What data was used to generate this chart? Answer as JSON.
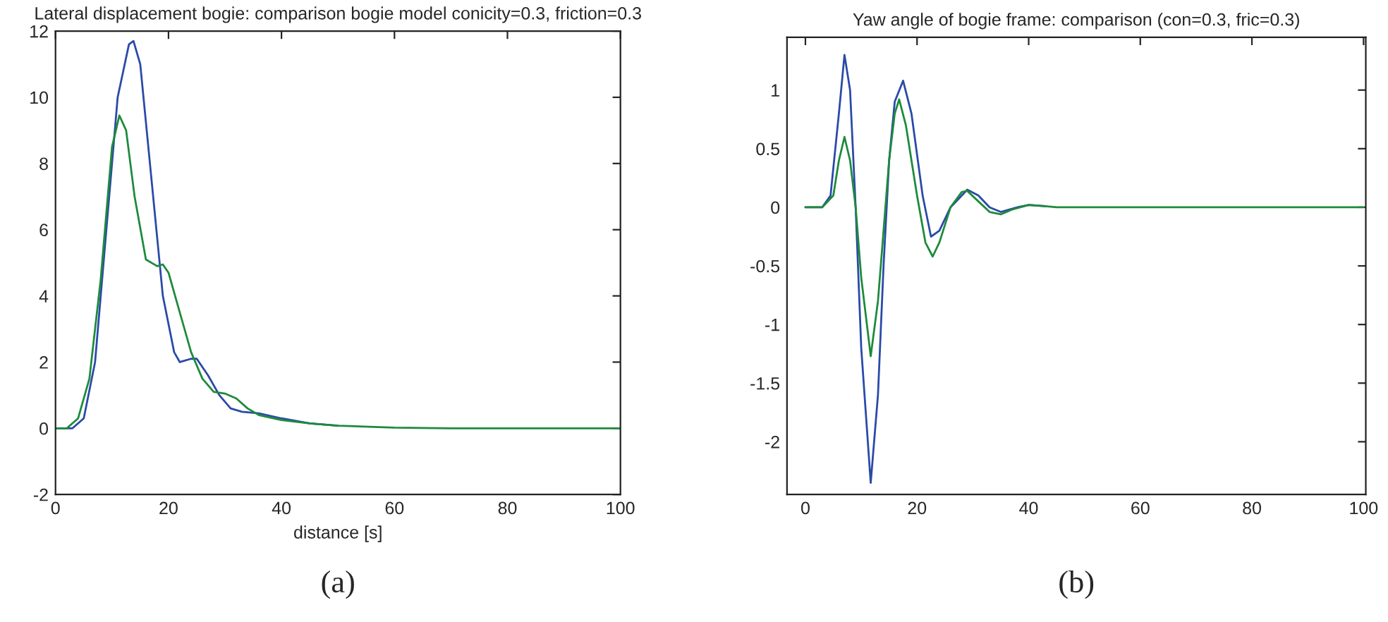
{
  "chart_data": [
    {
      "type": "line",
      "title": "Lateral displacement bogie: comparison bogie model conicity=0.3, friction=0.3",
      "xlabel": "distance [s]",
      "annotations": [
        "(a)"
      ],
      "xlim": [
        0,
        100
      ],
      "ylim": [
        -2,
        12
      ],
      "xticks": [
        0,
        20,
        40,
        60,
        80,
        100
      ],
      "yticks": [
        -2,
        0,
        2,
        4,
        6,
        8,
        10,
        12
      ],
      "grid": false,
      "series": [
        {
          "color": "#2a4aa8",
          "x": [
            0,
            3,
            5,
            7,
            9,
            11,
            13,
            13.8,
            15,
            17,
            19,
            21,
            22,
            24,
            25,
            27,
            29,
            31,
            33,
            36,
            40,
            45,
            50
          ],
          "values": [
            0,
            0,
            0.3,
            2,
            6,
            10,
            11.6,
            11.7,
            11,
            7.5,
            4,
            2.3,
            2.0,
            2.1,
            2.1,
            1.6,
            1.0,
            0.6,
            0.5,
            0.45,
            0.3,
            0.15,
            0.08
          ]
        },
        {
          "color": "#1e8a3c",
          "x": [
            0,
            2,
            4,
            6,
            8,
            10,
            11.3,
            12.5,
            14,
            16,
            18,
            19,
            20,
            22,
            24,
            26,
            28,
            30,
            32,
            34,
            36,
            40,
            45,
            50,
            60,
            70,
            100
          ],
          "values": [
            0,
            0,
            0.3,
            1.5,
            4.5,
            8.5,
            9.45,
            9,
            7,
            5.1,
            4.9,
            4.95,
            4.7,
            3.5,
            2.3,
            1.5,
            1.1,
            1.05,
            0.9,
            0.6,
            0.4,
            0.25,
            0.15,
            0.08,
            0.02,
            0,
            0
          ]
        }
      ]
    },
    {
      "type": "line",
      "title": "Yaw angle of bogie frame: comparison (con=0.3, fric=0.3)",
      "annotations": [
        "(b)"
      ],
      "xlim": [
        -3.3,
        100.4
      ],
      "ylim": [
        -2.45,
        1.45
      ],
      "xticks": [
        0,
        20,
        40,
        60,
        80,
        100
      ],
      "yticks": [
        -2,
        -1.5,
        -1,
        -0.5,
        0,
        0.5,
        1
      ],
      "grid": false,
      "series": [
        {
          "color": "#2a4aa8",
          "x": [
            0,
            3,
            4.5,
            6,
            7,
            8,
            9,
            10,
            11.7,
            13,
            14,
            15,
            16,
            17.5,
            19,
            21,
            22.5,
            24,
            26,
            29,
            31,
            33,
            35,
            38,
            40,
            43
          ],
          "values": [
            0,
            0,
            0.1,
            0.8,
            1.3,
            1.0,
            0,
            -1.2,
            -2.35,
            -1.6,
            -0.5,
            0.4,
            0.9,
            1.08,
            0.8,
            0.1,
            -0.25,
            -0.2,
            0,
            0.15,
            0.1,
            0,
            -0.04,
            0,
            0.02,
            0.01
          ]
        },
        {
          "color": "#1e8a3c",
          "x": [
            0,
            3,
            5,
            6,
            7,
            8,
            9,
            10,
            11.7,
            13,
            14,
            15,
            16,
            16.8,
            18,
            20,
            21.5,
            22.8,
            24,
            26,
            28,
            29,
            31,
            33,
            35,
            37,
            40,
            43,
            45,
            100
          ],
          "values": [
            0,
            0,
            0.1,
            0.4,
            0.6,
            0.4,
            0,
            -0.6,
            -1.27,
            -0.8,
            -0.2,
            0.4,
            0.8,
            0.92,
            0.7,
            0.1,
            -0.3,
            -0.42,
            -0.3,
            0,
            0.13,
            0.14,
            0.05,
            -0.04,
            -0.06,
            -0.02,
            0.02,
            0.01,
            0,
            0
          ]
        }
      ]
    }
  ]
}
